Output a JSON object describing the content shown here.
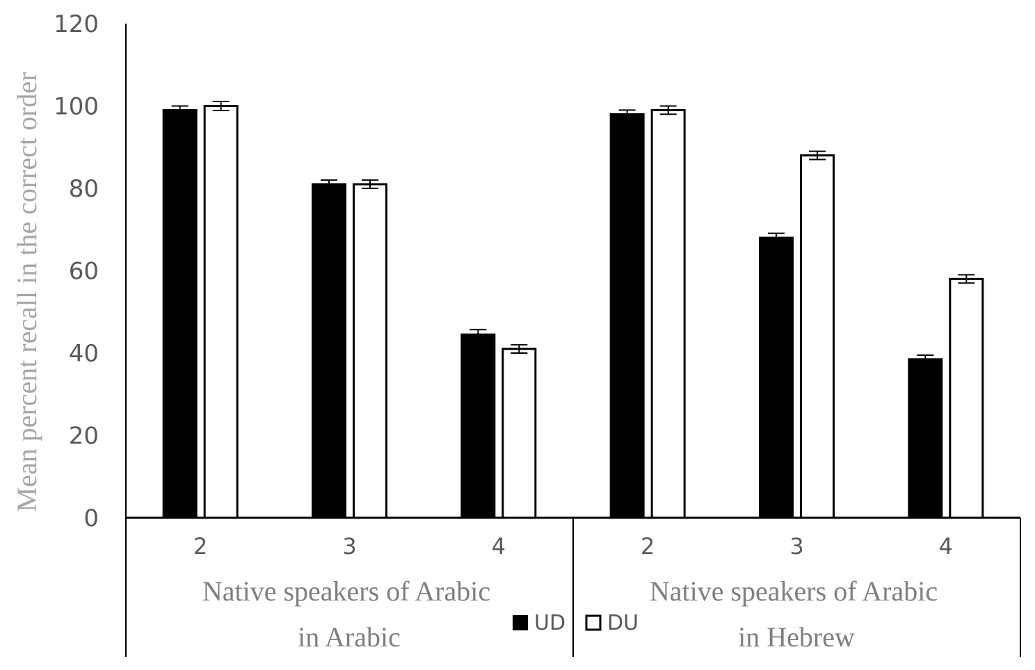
{
  "chart_data": {
    "type": "bar",
    "title": "",
    "ylabel": "Mean percent recall in the correct order",
    "xlabel": "",
    "ylim": [
      0,
      120
    ],
    "yticks": [
      0,
      20,
      40,
      60,
      80,
      100,
      120
    ],
    "groups": [
      {
        "label_line1": "Native speakers of Arabic",
        "label_line2": "in Arabic",
        "categories": [
          "2",
          "3",
          "4"
        ]
      },
      {
        "label_line1": "Native speakers of Arabic",
        "label_line2": "in Hebrew",
        "categories": [
          "2",
          "3",
          "4"
        ]
      }
    ],
    "series": [
      {
        "name": "UD",
        "color": "#000000",
        "values": [
          99,
          81,
          44.5,
          98,
          68,
          38.5
        ],
        "errors": [
          1.0,
          1.0,
          1.2,
          1.0,
          1.1,
          1.0
        ]
      },
      {
        "name": "DU",
        "color": "#ffffff",
        "values": [
          100,
          81,
          41,
          99,
          88,
          58
        ],
        "errors": [
          1.1,
          1.0,
          1.0,
          1.0,
          1.0,
          1.0
        ]
      }
    ],
    "legend": {
      "placement": "bottom-center"
    },
    "grid": false
  }
}
